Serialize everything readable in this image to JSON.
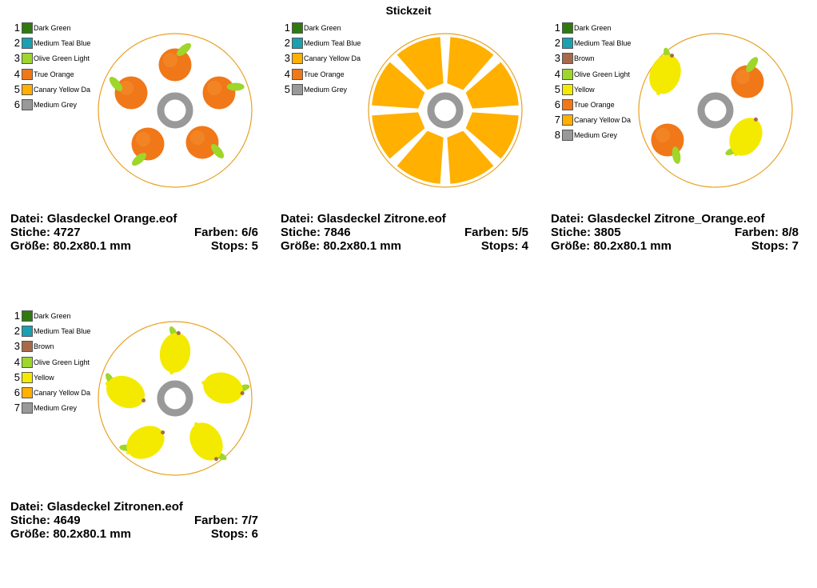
{
  "page_title": "Stickzeit",
  "colors": {
    "dark_green": "#2E7A10",
    "teal": "#1AA0B0",
    "olive": "#9ED62A",
    "orange": "#F07818",
    "canary": "#FFB000",
    "grey": "#999999",
    "brown": "#A86A4A",
    "yellow": "#F4EA00"
  },
  "designs": [
    {
      "file_line": "Datei: Glasdeckel Orange.eof",
      "stitches": "Stiche: 4727",
      "colors_count": "Farben: 6/6",
      "size": "Größe: 80.2x80.1 mm",
      "stops": "Stops: 5",
      "motif": "oranges",
      "legend": [
        {
          "num": "1",
          "label": "Dark Green",
          "color": "#2E7A10"
        },
        {
          "num": "2",
          "label": "Medium Teal Blue",
          "color": "#1AA0B0"
        },
        {
          "num": "3",
          "label": "Olive Green Light",
          "color": "#9ED62A"
        },
        {
          "num": "4",
          "label": "True Orange",
          "color": "#F07818"
        },
        {
          "num": "5",
          "label": "Canary Yellow Da",
          "color": "#FFB000"
        },
        {
          "num": "6",
          "label": "Medium Grey",
          "color": "#999999"
        }
      ]
    },
    {
      "file_line": "Datei: Glasdeckel Zitrone.eof",
      "stitches": "Stiche: 7846",
      "colors_count": "Farben: 5/5",
      "size": "Größe: 80.2x80.1 mm",
      "stops": "Stops: 4",
      "motif": "slice",
      "legend": [
        {
          "num": "1",
          "label": "Dark Green",
          "color": "#2E7A10"
        },
        {
          "num": "2",
          "label": "Medium Teal Blue",
          "color": "#1AA0B0"
        },
        {
          "num": "3",
          "label": "Canary Yellow Da",
          "color": "#FFB000"
        },
        {
          "num": "4",
          "label": "True Orange",
          "color": "#F07818"
        },
        {
          "num": "5",
          "label": "Medium Grey",
          "color": "#999999"
        }
      ]
    },
    {
      "file_line": "Datei: Glasdeckel Zitrone_Orange.eof",
      "stitches": "Stiche: 3805",
      "colors_count": "Farben: 8/8",
      "size": "Größe: 80.2x80.1 mm",
      "stops": "Stops: 7",
      "motif": "mixed",
      "legend": [
        {
          "num": "1",
          "label": "Dark Green",
          "color": "#2E7A10"
        },
        {
          "num": "2",
          "label": "Medium Teal Blue",
          "color": "#1AA0B0"
        },
        {
          "num": "3",
          "label": "Brown",
          "color": "#A86A4A"
        },
        {
          "num": "4",
          "label": "Olive Green Light",
          "color": "#9ED62A"
        },
        {
          "num": "5",
          "label": "Yellow",
          "color": "#F4EA00"
        },
        {
          "num": "6",
          "label": "True Orange",
          "color": "#F07818"
        },
        {
          "num": "7",
          "label": "Canary Yellow Da",
          "color": "#FFB000"
        },
        {
          "num": "8",
          "label": "Medium Grey",
          "color": "#999999"
        }
      ]
    },
    {
      "file_line": "Datei: Glasdeckel Zitronen.eof",
      "stitches": "Stiche: 4649",
      "colors_count": "Farben: 7/7",
      "size": "Größe: 80.2x80.1 mm",
      "stops": "Stops: 6",
      "motif": "lemons",
      "legend": [
        {
          "num": "1",
          "label": "Dark Green",
          "color": "#2E7A10"
        },
        {
          "num": "2",
          "label": "Medium Teal Blue",
          "color": "#1AA0B0"
        },
        {
          "num": "3",
          "label": "Brown",
          "color": "#A86A4A"
        },
        {
          "num": "4",
          "label": "Olive Green Light",
          "color": "#9ED62A"
        },
        {
          "num": "5",
          "label": "Yellow",
          "color": "#F4EA00"
        },
        {
          "num": "6",
          "label": "Canary Yellow Da",
          "color": "#FFB000"
        },
        {
          "num": "7",
          "label": "Medium Grey",
          "color": "#999999"
        }
      ]
    }
  ]
}
